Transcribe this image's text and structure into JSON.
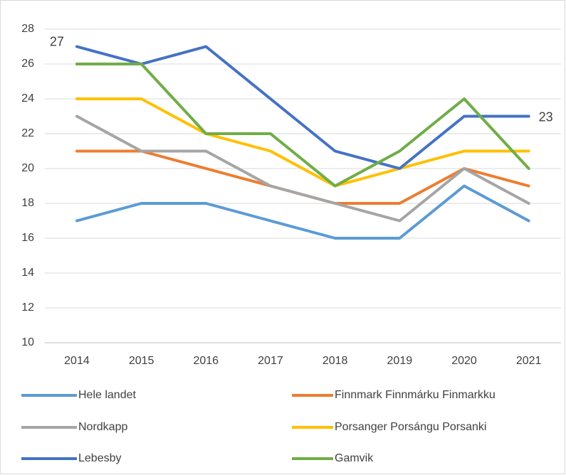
{
  "chart_data": {
    "type": "line",
    "categories": [
      "2014",
      "2015",
      "2016",
      "2017",
      "2018",
      "2019",
      "2020",
      "2021"
    ],
    "series": [
      {
        "name": "Hele landet",
        "color": "#5b9bd5",
        "values": [
          17,
          18,
          18,
          17,
          16,
          16,
          19,
          17
        ]
      },
      {
        "name": "Finnmark Finnmárku Finmarkku",
        "color": "#ed7d31",
        "values": [
          21,
          21,
          20,
          19,
          18,
          18,
          20,
          19
        ]
      },
      {
        "name": "Nordkapp",
        "color": "#a5a5a5",
        "values": [
          23,
          21,
          21,
          19,
          18,
          17,
          20,
          18
        ]
      },
      {
        "name": "Porsanger Porsángu Porsanki",
        "color": "#ffc000",
        "values": [
          24,
          24,
          22,
          21,
          19,
          20,
          21,
          21
        ]
      },
      {
        "name": "Lebesby",
        "color": "#4472c4",
        "values": [
          27,
          26,
          27,
          24,
          21,
          20,
          23,
          23
        ],
        "value_labels": [
          "27",
          null,
          null,
          null,
          null,
          null,
          null,
          "23"
        ]
      },
      {
        "name": "Gamvik",
        "color": "#70ad47",
        "values": [
          26,
          26,
          22,
          22,
          19,
          21,
          24,
          20
        ]
      }
    ],
    "ylim": [
      10,
      28
    ],
    "yticks": [
      10,
      12,
      14,
      16,
      18,
      20,
      22,
      24,
      26,
      28
    ],
    "grid": true,
    "legend": "bottom"
  }
}
